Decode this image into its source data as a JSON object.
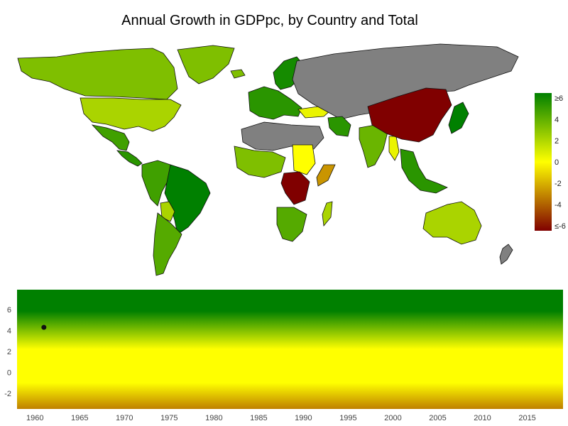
{
  "title": "Annual Growth in GDPpc, by Country and Total",
  "colors": {
    "high": "#008000",
    "mid_high": "#7fbf00",
    "zero": "#ffff00",
    "mid_low": "#bf8000",
    "low": "#800000",
    "no_data": "#808080",
    "ocean": "#ffffff",
    "point": "#111111"
  },
  "legend": {
    "ticks": [
      "≥6",
      "4",
      "2",
      "0",
      "-2",
      "-4",
      "≤-6"
    ],
    "range": [
      -6,
      6
    ]
  },
  "map_regions": [
    {
      "name": "north-america-canada",
      "growth": 3.0
    },
    {
      "name": "north-america-usa",
      "growth": 2.0
    },
    {
      "name": "mexico",
      "growth": 4.5
    },
    {
      "name": "central-america",
      "growth": 5.0
    },
    {
      "name": "brazil",
      "growth": 6.0
    },
    {
      "name": "andean-south-america",
      "growth": 4.5
    },
    {
      "name": "argentina-chile",
      "growth": 4.0
    },
    {
      "name": "bolivia",
      "growth": 2.0
    },
    {
      "name": "greenland",
      "growth": 3.0
    },
    {
      "name": "iceland",
      "growth": 3.0
    },
    {
      "name": "scandinavia",
      "growth": 5.5
    },
    {
      "name": "western-europe",
      "growth": 5.0
    },
    {
      "name": "turkey",
      "growth": 0.5
    },
    {
      "name": "russia-central-asia",
      "growth": null
    },
    {
      "name": "iran",
      "growth": 5.0
    },
    {
      "name": "india",
      "growth": 3.5
    },
    {
      "name": "myanmar",
      "growth": 0.5
    },
    {
      "name": "china",
      "growth": -6.0
    },
    {
      "name": "japan",
      "growth": 7.0
    },
    {
      "name": "southeast-asia",
      "growth": 5.0
    },
    {
      "name": "north-africa",
      "growth": null
    },
    {
      "name": "west-africa",
      "growth": 3.0
    },
    {
      "name": "sudan",
      "growth": 0.0
    },
    {
      "name": "somalia",
      "growth": -2.5
    },
    {
      "name": "congo",
      "growth": -6.0
    },
    {
      "name": "southern-africa",
      "growth": 4.0
    },
    {
      "name": "madagascar",
      "growth": 2.0
    },
    {
      "name": "australia",
      "growth": 2.0
    },
    {
      "name": "new-zealand",
      "growth": null
    }
  ],
  "chart_data": {
    "type": "scatter",
    "x_ticks": [
      "1960",
      "1965",
      "1970",
      "1975",
      "1980",
      "1985",
      "1990",
      "1995",
      "2000",
      "2005",
      "2010",
      "2015"
    ],
    "y_ticks": [
      "6",
      "4",
      "2",
      "0",
      "-2"
    ],
    "xlim": [
      1958,
      2019
    ],
    "ylim": [
      -3.5,
      7.9
    ],
    "points": [
      {
        "x": 1961,
        "y": 4.3
      }
    ]
  }
}
